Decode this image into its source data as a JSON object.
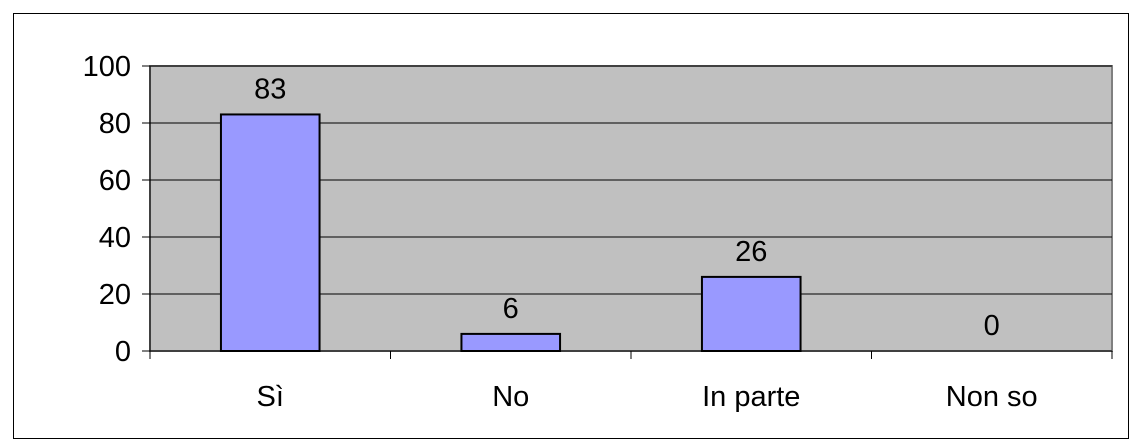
{
  "chart_data": {
    "type": "bar",
    "categories": [
      "Sì",
      "No",
      "In parte",
      "Non so"
    ],
    "values": [
      83,
      6,
      26,
      0
    ],
    "data_labels": [
      "83",
      "6",
      "26",
      "0"
    ],
    "title": "",
    "xlabel": "",
    "ylabel": "",
    "ylim": [
      0,
      100
    ],
    "yticks": [
      0,
      20,
      40,
      60,
      80,
      100
    ],
    "ytick_labels": [
      "0",
      "20",
      "40",
      "60",
      "80",
      "100"
    ],
    "grid": true,
    "legend": "none",
    "colors": {
      "plot_background": "#c0c0c0",
      "bar_fill": "#9999ff",
      "bar_stroke": "#000000",
      "gridline": "#000000",
      "plot_border": "#808080"
    }
  }
}
